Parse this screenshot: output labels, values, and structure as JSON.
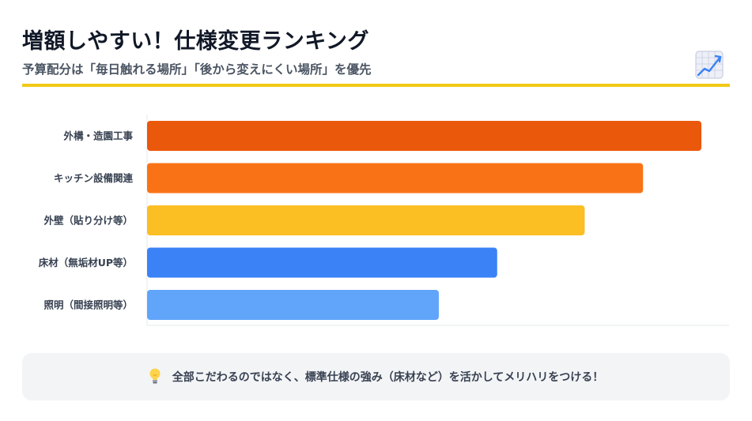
{
  "header": {
    "title": "増額しやすい！仕様変更ランキング",
    "subtitle": "予算配分は「毎日触れる場所」「後から変えにくい場所」を優先",
    "icon": "chart-increasing-icon",
    "accent_color": "#f2c915"
  },
  "chart_data": {
    "type": "bar",
    "orientation": "horizontal",
    "categories": [
      "外構・造園工事",
      "キッチン設備関連",
      "外壁（貼り分け等）",
      "床材（無垢材UP等）",
      "照明（間接照明等）"
    ],
    "values": [
      95,
      85,
      75,
      60,
      50
    ],
    "colors": [
      "#ea580c",
      "#f97316",
      "#fbbf24",
      "#3b82f6",
      "#60a5fa"
    ],
    "xlim": [
      0,
      100
    ],
    "title": "",
    "xlabel": "",
    "ylabel": "",
    "grid": false
  },
  "tip": {
    "icon": "light-bulb-icon",
    "text": "全部こだわるのではなく、標準仕様の強み（床材など）を活かしてメリハリをつける！"
  }
}
